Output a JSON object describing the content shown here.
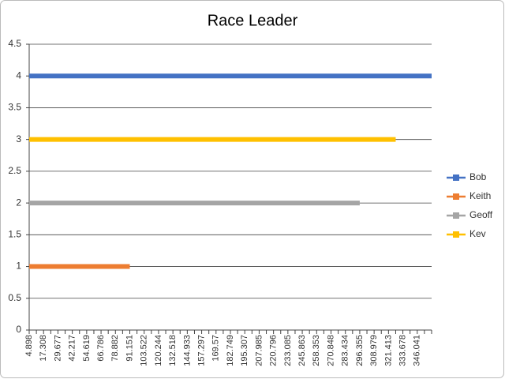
{
  "chart_data": {
    "type": "line",
    "title": "Race Leader",
    "categories": [
      "4.898",
      null,
      "17.308",
      null,
      "29.677",
      null,
      "42.217",
      null,
      "54.619",
      null,
      "66.786",
      null,
      "78.882",
      null,
      "91.151",
      null,
      "103.522",
      null,
      "120.244",
      null,
      "132.518",
      null,
      "144.933",
      null,
      "157.297",
      null,
      "169.57",
      null,
      "182.749",
      null,
      "195.307",
      null,
      "207.985",
      null,
      "220.796",
      null,
      "233.085",
      null,
      "245.863",
      null,
      "258.353",
      null,
      "270.848",
      null,
      "283.434",
      null,
      "296.355",
      null,
      "308.979",
      null,
      "321.413",
      null,
      "333.678",
      null,
      "346.041",
      null,
      null
    ],
    "series": [
      {
        "name": "Bob",
        "color": "#4472c4",
        "values": [
          4,
          4,
          4,
          4,
          4,
          4,
          4,
          4,
          4,
          4,
          4,
          4,
          4,
          4,
          4,
          4,
          4,
          4,
          4,
          4,
          4,
          4,
          4,
          4,
          4,
          4,
          4,
          4,
          4,
          4,
          4,
          4,
          4,
          4,
          4,
          4,
          4,
          4,
          4,
          4,
          4,
          4,
          4,
          4,
          4,
          4,
          4,
          4,
          4,
          4,
          4,
          4,
          4,
          4,
          4,
          4,
          4
        ]
      },
      {
        "name": "Keith",
        "color": "#ed7d31",
        "values": [
          1,
          1,
          1,
          1,
          1,
          1,
          1,
          1,
          1,
          1,
          1,
          1,
          1,
          1,
          1,
          null,
          null,
          null,
          null,
          null,
          null,
          null,
          null,
          null,
          null,
          null,
          null,
          null,
          null,
          null,
          null,
          null,
          null,
          null,
          null,
          null,
          null,
          null,
          null,
          null,
          null,
          null,
          null,
          null,
          null,
          null,
          null,
          null,
          null,
          null,
          null,
          null,
          null,
          null,
          null,
          null,
          null
        ]
      },
      {
        "name": "Geoff",
        "color": "#a5a5a5",
        "values": [
          2,
          2,
          2,
          2,
          2,
          2,
          2,
          2,
          2,
          2,
          2,
          2,
          2,
          2,
          2,
          2,
          2,
          2,
          2,
          2,
          2,
          2,
          2,
          2,
          2,
          2,
          2,
          2,
          2,
          2,
          2,
          2,
          2,
          2,
          2,
          2,
          2,
          2,
          2,
          2,
          2,
          2,
          2,
          2,
          2,
          2,
          2,
          null,
          null,
          null,
          null,
          null,
          null,
          null,
          null,
          null,
          null
        ]
      },
      {
        "name": "Kev",
        "color": "#ffc000",
        "values": [
          3,
          3,
          3,
          3,
          3,
          3,
          3,
          3,
          3,
          3,
          3,
          3,
          3,
          3,
          3,
          3,
          3,
          3,
          3,
          3,
          3,
          3,
          3,
          3,
          3,
          3,
          3,
          3,
          3,
          3,
          3,
          3,
          3,
          3,
          3,
          3,
          3,
          3,
          3,
          3,
          3,
          3,
          3,
          3,
          3,
          3,
          3,
          3,
          3,
          3,
          3,
          3,
          null,
          null,
          null,
          null,
          null
        ]
      }
    ],
    "ylim": [
      0,
      4.5
    ],
    "yticks": [
      0,
      0.5,
      1,
      1.5,
      2,
      2.5,
      3,
      3.5,
      4,
      4.5
    ],
    "grid": true,
    "legend": "right"
  }
}
